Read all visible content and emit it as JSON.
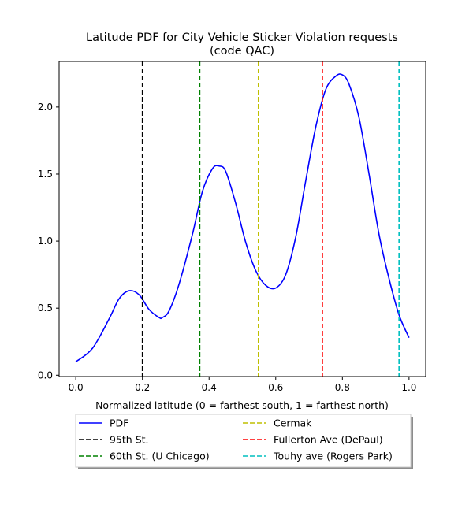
{
  "chart_data": {
    "type": "line",
    "title_line1": "Latitude PDF for City Vehicle Sticker Violation  requests",
    "title_line2": "(code QAC)",
    "xlabel": "Normalized latitude (0 = farthest south, 1 = farthest north)",
    "ylabel": "",
    "xlim": [
      -0.05,
      1.05
    ],
    "ylim": [
      -0.01,
      2.34
    ],
    "x_ticks": [
      0.0,
      0.2,
      0.4,
      0.6,
      0.8,
      1.0
    ],
    "x_tick_labels": [
      "0.0",
      "0.2",
      "0.4",
      "0.6",
      "0.8",
      "1.0"
    ],
    "y_ticks": [
      0.0,
      0.5,
      1.0,
      1.5,
      2.0
    ],
    "y_tick_labels": [
      "0.0",
      "0.5",
      "1.0",
      "1.5",
      "2.0"
    ],
    "grid": false,
    "legend_position": "below plot, two columns, with shadow",
    "series": [
      {
        "name": "PDF",
        "color": "#0000ff",
        "style": "solid",
        "x": [
          0.0,
          0.05,
          0.1,
          0.13,
          0.16,
          0.19,
          0.22,
          0.25,
          0.26,
          0.28,
          0.31,
          0.35,
          0.38,
          0.41,
          0.43,
          0.45,
          0.48,
          0.51,
          0.54,
          0.57,
          0.6,
          0.63,
          0.66,
          0.69,
          0.72,
          0.75,
          0.78,
          0.8,
          0.82,
          0.85,
          0.88,
          0.91,
          0.94,
          0.97,
          1.0
        ],
        "y": [
          0.1,
          0.2,
          0.42,
          0.57,
          0.63,
          0.6,
          0.49,
          0.43,
          0.43,
          0.48,
          0.68,
          1.05,
          1.37,
          1.54,
          1.56,
          1.52,
          1.28,
          0.99,
          0.78,
          0.67,
          0.65,
          0.75,
          1.03,
          1.45,
          1.85,
          2.13,
          2.23,
          2.24,
          2.17,
          1.92,
          1.5,
          1.05,
          0.72,
          0.45,
          0.28
        ]
      }
    ],
    "reference_lines": [
      {
        "name": "95th St.",
        "x": 0.2,
        "color": "#000000",
        "style": "dashed"
      },
      {
        "name": "60th St. (U Chicago)",
        "x": 0.372,
        "color": "#008000",
        "style": "dashed"
      },
      {
        "name": "Cermak",
        "x": 0.548,
        "color": "#bfbf00",
        "style": "dashed"
      },
      {
        "name": "Fullerton Ave (DePaul)",
        "x": 0.74,
        "color": "#ff0000",
        "style": "dashed"
      },
      {
        "name": "Touhy ave (Rogers Park)",
        "x": 0.97,
        "color": "#00bfbf",
        "style": "dashed"
      }
    ]
  }
}
